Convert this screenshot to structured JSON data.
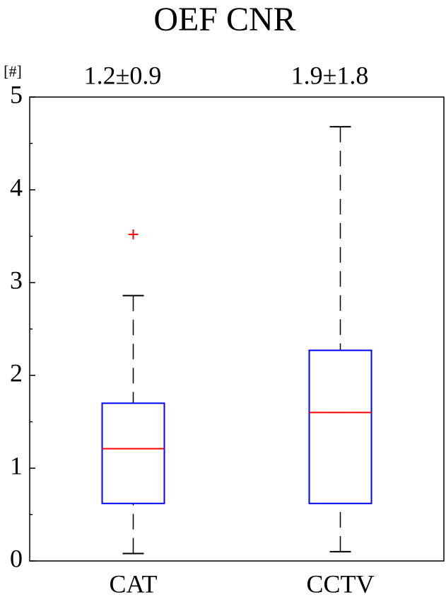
{
  "chart_data": {
    "type": "box",
    "title": "OEF CNR",
    "ylabel": "[#]",
    "categories": [
      "CAT",
      "CCTV"
    ],
    "annotations": [
      "1.2±0.9",
      "1.9±1.8"
    ],
    "box_color": "#0000ff",
    "median_color": "#ff0000",
    "whisker_color": "#000000",
    "outlier_color": "#ff0000",
    "series": [
      {
        "whisker_low": 0.08,
        "q1": 0.62,
        "median": 1.21,
        "q3": 1.7,
        "whisker_high": 2.86,
        "outliers": [
          3.52
        ]
      },
      {
        "whisker_low": 0.1,
        "q1": 0.62,
        "median": 1.6,
        "q3": 2.27,
        "whisker_high": 4.68,
        "outliers": []
      }
    ],
    "ylim": [
      0,
      5
    ],
    "yticks": [
      0,
      1,
      2,
      3,
      4,
      5
    ],
    "yminorticks": [
      0.5,
      1.5,
      2.5,
      3.5,
      4.5
    ]
  }
}
